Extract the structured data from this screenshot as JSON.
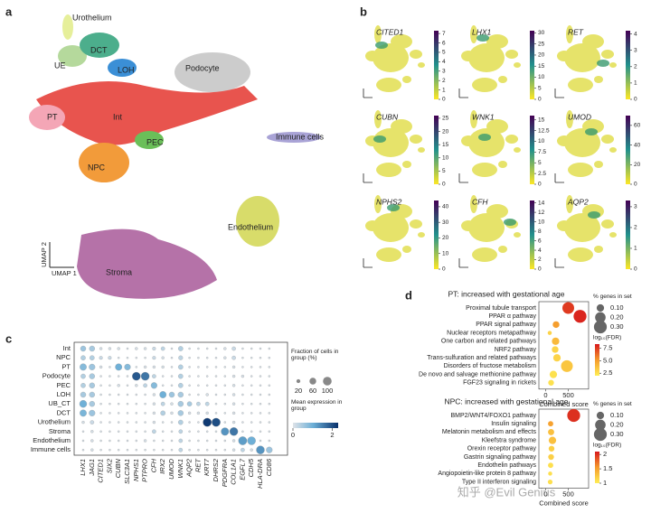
{
  "panels": [
    "a",
    "b",
    "c",
    "d"
  ],
  "watermark": "知乎 @Evil Genius",
  "chart_data": [
    {
      "type": "umap",
      "x_label": "UMAP 1",
      "y_label": "UMAP 2",
      "clusters": [
        "Urothelium",
        "UE",
        "DCT",
        "LOH",
        "Podocyte",
        "PT",
        "Int",
        "PEC",
        "NPC",
        "Immune cells",
        "Endothelium",
        "Stroma"
      ]
    },
    {
      "type": "feature",
      "plots": [
        {
          "gene": "CITED1",
          "lim": [
            0,
            7.3
          ],
          "ticks": [
            0,
            1,
            2,
            3,
            4,
            5,
            6,
            7
          ]
        },
        {
          "gene": "LHX1",
          "lim": [
            0,
            31
          ],
          "ticks": [
            0,
            5,
            10,
            15,
            20,
            25,
            30
          ]
        },
        {
          "gene": "RET",
          "lim": [
            0,
            4.2
          ],
          "ticks": [
            0,
            1,
            2,
            3,
            4
          ]
        },
        {
          "gene": "CUBN",
          "lim": [
            0,
            26
          ],
          "ticks": [
            0,
            5,
            10,
            15,
            20,
            25
          ]
        },
        {
          "gene": "WNK1",
          "lim": [
            0,
            16
          ],
          "ticks": [
            0,
            2.5,
            5,
            {
              "value": 7.5,
              "label": "7.5"
            },
            10,
            12.5,
            15
          ]
        },
        {
          "gene": "UMOD",
          "lim": [
            0,
            70
          ],
          "ticks": [
            0,
            20,
            40,
            60
          ]
        },
        {
          "gene": "NPHS2",
          "lim": [
            0,
            44
          ],
          "ticks": [
            0,
            10,
            20,
            30,
            40
          ]
        },
        {
          "gene": "CFH",
          "lim": [
            0,
            14.5
          ],
          "ticks": [
            0,
            2,
            4,
            6,
            8,
            10,
            12,
            14
          ]
        },
        {
          "gene": "AQP2",
          "lim": [
            0,
            3.3
          ],
          "ticks": [
            0,
            1,
            2,
            3
          ]
        }
      ]
    },
    {
      "type": "dot",
      "rows": [
        "Int",
        "NPC",
        "PT",
        "Podocyte",
        "PEC",
        "LOH",
        "UB_CT",
        "DCT",
        "Urothelium",
        "Stroma",
        "Endothelium",
        "Immune cells"
      ],
      "columns": [
        "LHX1",
        "JAG1",
        "CITED1",
        "SIX2",
        "CUBN",
        "SLC3A1",
        "NPHS1",
        "PTPRO",
        "CFH",
        "IRX2",
        "UMOD",
        "WNK1",
        "AQP2",
        "RET",
        "KRT7",
        "DHRS2",
        "PDGFRA",
        "COL1A1",
        "EGFL7",
        "CDH5",
        "HLA-DRA",
        "CD86"
      ],
      "fraction": [
        [
          40,
          40,
          10,
          10,
          10,
          5,
          10,
          10,
          15,
          20,
          5,
          30,
          5,
          5,
          5,
          5,
          10,
          20,
          5,
          5,
          5,
          5
        ],
        [
          30,
          30,
          15,
          15,
          5,
          5,
          5,
          5,
          15,
          10,
          5,
          25,
          5,
          5,
          5,
          5,
          10,
          20,
          5,
          5,
          5,
          5
        ],
        [
          60,
          50,
          10,
          5,
          60,
          50,
          5,
          10,
          10,
          10,
          5,
          30,
          5,
          5,
          5,
          5,
          5,
          10,
          5,
          5,
          5,
          5
        ],
        [
          30,
          40,
          5,
          5,
          5,
          5,
          90,
          90,
          20,
          5,
          5,
          30,
          5,
          5,
          5,
          5,
          5,
          10,
          10,
          5,
          5,
          5
        ],
        [
          30,
          40,
          5,
          5,
          10,
          5,
          10,
          20,
          50,
          5,
          5,
          30,
          5,
          5,
          5,
          5,
          5,
          10,
          5,
          5,
          5,
          5
        ],
        [
          40,
          40,
          5,
          5,
          5,
          5,
          5,
          5,
          10,
          60,
          40,
          40,
          5,
          5,
          10,
          5,
          5,
          10,
          5,
          5,
          5,
          5
        ],
        [
          70,
          40,
          5,
          5,
          5,
          5,
          5,
          5,
          10,
          20,
          10,
          40,
          30,
          20,
          20,
          5,
          5,
          10,
          5,
          5,
          5,
          5
        ],
        [
          60,
          50,
          5,
          5,
          5,
          5,
          5,
          5,
          10,
          30,
          10,
          40,
          10,
          10,
          10,
          5,
          5,
          10,
          5,
          5,
          5,
          5
        ],
        [
          10,
          20,
          5,
          5,
          5,
          5,
          5,
          5,
          10,
          5,
          5,
          30,
          5,
          5,
          95,
          95,
          5,
          10,
          5,
          5,
          5,
          5
        ],
        [
          5,
          10,
          5,
          5,
          5,
          5,
          5,
          5,
          20,
          5,
          5,
          20,
          5,
          5,
          5,
          5,
          80,
          90,
          5,
          5,
          5,
          5
        ],
        [
          5,
          10,
          5,
          5,
          5,
          5,
          5,
          10,
          5,
          5,
          5,
          20,
          5,
          5,
          5,
          5,
          5,
          10,
          95,
          90,
          5,
          5
        ],
        [
          5,
          10,
          5,
          5,
          5,
          5,
          5,
          5,
          5,
          5,
          5,
          20,
          5,
          5,
          5,
          5,
          5,
          10,
          20,
          10,
          90,
          50
        ]
      ],
      "expression": [
        [
          0.6,
          0.5,
          0.1,
          0.1,
          0.1,
          0.1,
          0.1,
          0.1,
          0.2,
          0.3,
          0.1,
          0.4,
          0.1,
          0.1,
          0.1,
          0.1,
          0.1,
          0.2,
          0.1,
          0.1,
          0.1,
          0.1
        ],
        [
          0.4,
          0.4,
          0.2,
          0.2,
          0.1,
          0.1,
          0.1,
          0.1,
          0.2,
          0.1,
          0.1,
          0.3,
          0.1,
          0.1,
          0.1,
          0.1,
          0.1,
          0.2,
          0.1,
          0.1,
          0.1,
          0.1
        ],
        [
          0.8,
          0.6,
          0.1,
          0.1,
          1.0,
          0.8,
          0.1,
          0.1,
          0.1,
          0.1,
          0.1,
          0.4,
          0.1,
          0.1,
          0.1,
          0.1,
          0.1,
          0.1,
          0.1,
          0.1,
          0.1,
          0.1
        ],
        [
          0.4,
          0.5,
          0.1,
          0.1,
          0.1,
          0.1,
          1.9,
          1.6,
          0.3,
          0.1,
          0.1,
          0.4,
          0.1,
          0.1,
          0.1,
          0.1,
          0.1,
          0.1,
          0.1,
          0.1,
          0.1,
          0.1
        ],
        [
          0.4,
          0.5,
          0.1,
          0.1,
          0.1,
          0.1,
          0.1,
          0.3,
          0.8,
          0.1,
          0.1,
          0.4,
          0.1,
          0.1,
          0.1,
          0.1,
          0.1,
          0.1,
          0.1,
          0.1,
          0.1,
          0.1
        ],
        [
          0.5,
          0.5,
          0.1,
          0.1,
          0.1,
          0.1,
          0.1,
          0.1,
          0.1,
          1.0,
          0.6,
          0.5,
          0.1,
          0.1,
          0.1,
          0.1,
          0.1,
          0.1,
          0.1,
          0.1,
          0.1,
          0.1
        ],
        [
          1.0,
          0.5,
          0.1,
          0.1,
          0.1,
          0.1,
          0.1,
          0.1,
          0.1,
          0.3,
          0.1,
          0.5,
          0.5,
          0.3,
          0.3,
          0.1,
          0.1,
          0.1,
          0.1,
          0.1,
          0.1,
          0.1
        ],
        [
          0.9,
          0.6,
          0.1,
          0.1,
          0.1,
          0.1,
          0.1,
          0.1,
          0.1,
          0.4,
          0.1,
          0.5,
          0.1,
          0.1,
          0.1,
          0.1,
          0.1,
          0.1,
          0.1,
          0.1,
          0.1,
          0.1
        ],
        [
          0.1,
          0.2,
          0.1,
          0.1,
          0.1,
          0.1,
          0.1,
          0.1,
          0.1,
          0.1,
          0.1,
          0.4,
          0.1,
          0.1,
          2.2,
          2.0,
          0.1,
          0.1,
          0.1,
          0.1,
          0.1,
          0.1
        ],
        [
          0.1,
          0.1,
          0.1,
          0.1,
          0.1,
          0.1,
          0.1,
          0.1,
          0.3,
          0.1,
          0.1,
          0.3,
          0.1,
          0.1,
          0.1,
          0.1,
          1.3,
          1.6,
          0.1,
          0.1,
          0.1,
          0.1
        ],
        [
          0.1,
          0.1,
          0.1,
          0.1,
          0.1,
          0.1,
          0.1,
          0.1,
          0.1,
          0.1,
          0.1,
          0.3,
          0.1,
          0.1,
          0.1,
          0.1,
          0.1,
          0.1,
          1.2,
          1.0,
          0.1,
          0.1
        ],
        [
          0.1,
          0.1,
          0.1,
          0.1,
          0.1,
          0.1,
          0.1,
          0.1,
          0.1,
          0.1,
          0.1,
          0.3,
          0.1,
          0.1,
          0.1,
          0.1,
          0.1,
          0.1,
          0.3,
          0.1,
          1.3,
          0.6
        ]
      ],
      "size_legend": {
        "title": "Fraction of cells in group (%)",
        "ticks": [
          20,
          60,
          100
        ]
      },
      "color_legend": {
        "title": "Mean expression in group",
        "lim": [
          0,
          2.3
        ],
        "ticks": [
          0,
          2
        ]
      }
    },
    {
      "type": "enrichment",
      "title": "PT: increased with gestational age",
      "categories": [
        "Proximal tubule transport",
        "PPAR α pathway",
        "PPAR signal pathway",
        "Nuclear receptors metapathway",
        "One carbon and related pathways",
        "NRF2 pathway",
        "Trans-sulfuration and related pathways",
        "Disorders of fructose metabolism",
        "De novo and salvage methionine pathway",
        "FGF23 signaling in rickets"
      ],
      "x": [
        500,
        760,
        230,
        90,
        220,
        210,
        250,
        470,
        170,
        120
      ],
      "sizes": [
        0.25,
        0.3,
        0.08,
        0.03,
        0.1,
        0.08,
        0.1,
        0.25,
        0.1,
        0.06
      ],
      "colors": [
        7.5,
        8,
        5,
        3,
        4,
        3,
        3,
        3.5,
        2.5,
        2.5
      ],
      "xlim": [
        -150,
        950
      ],
      "xticks": [
        0,
        500
      ],
      "x_label": "Combined score",
      "size_legend": {
        "title": "% genes in set",
        "ticks": [
          {
            "value": 0.1,
            "label": "0.10"
          },
          {
            "value": 0.2,
            "label": "0.20"
          },
          {
            "value": 0.3,
            "label": "0.30"
          }
        ]
      },
      "color_legend": {
        "title": "log₁₀(FDR)",
        "lim": [
          2,
          8.3
        ],
        "ticks": [
          {
            "value": 7.5,
            "label": "7.5"
          },
          {
            "value": 5,
            "label": "5.0"
          },
          {
            "value": 2.5,
            "label": "2.5"
          }
        ]
      }
    },
    {
      "type": "enrichment",
      "title": "NPC: increased with gestational age",
      "categories": [
        "BMP2/WNT4/FOXO1 pathway",
        "Insulin signaling",
        "Melatonin metabolism and effects",
        "Kleefstra syndrome",
        "Orexin receptor pathway",
        "Gastrin signaling pathway",
        "Endothelin pathways",
        "Angiopoietin-like protein 8 pathway",
        "Type II interferon signaling"
      ],
      "x": [
        620,
        110,
        120,
        150,
        130,
        120,
        110,
        100,
        100
      ],
      "sizes": [
        0.3,
        0.05,
        0.07,
        0.1,
        0.06,
        0.06,
        0.05,
        0.03,
        0.04
      ],
      "colors": [
        2,
        1.5,
        1.3,
        1.3,
        1.2,
        1.2,
        1.1,
        1.1,
        1.1
      ],
      "xlim": [
        -150,
        950
      ],
      "xticks": [
        0,
        500
      ],
      "x_label": "Combined score",
      "size_legend": {
        "title": "% genes in set",
        "ticks": [
          {
            "value": 0.1,
            "label": "0.10"
          },
          {
            "value": 0.2,
            "label": "0.20"
          },
          {
            "value": 0.3,
            "label": "0.30"
          }
        ]
      },
      "color_legend": {
        "title": "log₁₀(FDR)",
        "lim": [
          1,
          2.1
        ],
        "ticks": [
          2,
          {
            "value": 1.5,
            "label": "1.5"
          },
          1
        ]
      }
    }
  ]
}
